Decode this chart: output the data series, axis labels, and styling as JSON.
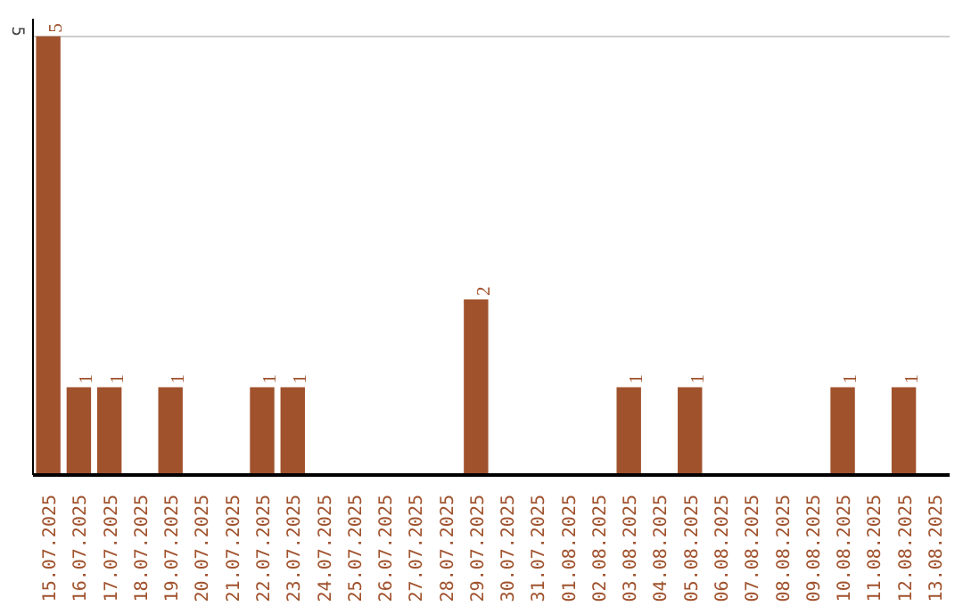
{
  "chart_data": {
    "type": "bar",
    "categories": [
      "15.07.2025",
      "16.07.2025",
      "17.07.2025",
      "18.07.2025",
      "19.07.2025",
      "20.07.2025",
      "21.07.2025",
      "22.07.2025",
      "23.07.2025",
      "24.07.2025",
      "25.07.2025",
      "26.07.2025",
      "27.07.2025",
      "28.07.2025",
      "29.07.2025",
      "30.07.2025",
      "31.07.2025",
      "01.08.2025",
      "02.08.2025",
      "03.08.2025",
      "04.08.2025",
      "05.08.2025",
      "06.08.2025",
      "07.08.2025",
      "08.08.2025",
      "09.08.2025",
      "10.08.2025",
      "11.08.2025",
      "12.08.2025",
      "13.08.2025"
    ],
    "values": [
      5,
      1,
      1,
      0,
      1,
      0,
      0,
      1,
      1,
      0,
      0,
      0,
      0,
      0,
      2,
      0,
      0,
      0,
      0,
      1,
      0,
      1,
      0,
      0,
      0,
      0,
      1,
      0,
      1,
      0
    ],
    "value_labels": [
      "5",
      "1",
      "1",
      null,
      "1",
      null,
      null,
      "1",
      "1",
      null,
      null,
      null,
      null,
      null,
      "2",
      null,
      null,
      null,
      null,
      "1",
      null,
      "1",
      null,
      null,
      null,
      null,
      "1",
      null,
      "1",
      null
    ],
    "color": "#a0522d",
    "ylim": [
      0,
      5.2
    ],
    "yticks": [
      5
    ],
    "grid": "y"
  }
}
